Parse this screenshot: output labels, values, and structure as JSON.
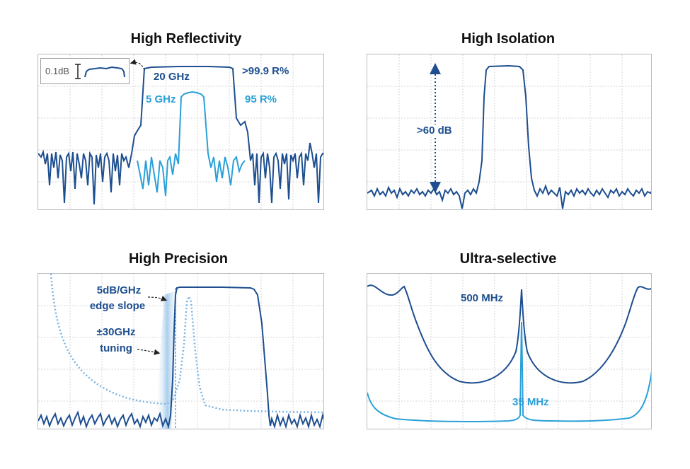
{
  "panels": {
    "reflectivity": {
      "title": "High Reflectivity",
      "inset_label": "0.1dB",
      "label_20": "20 GHz",
      "label_5": "5 GHz",
      "label_r1": ">99.9 R%",
      "label_r2": "95 R%"
    },
    "isolation": {
      "title": "High Isolation",
      "label": ">60 dB"
    },
    "precision": {
      "title": "High Precision",
      "slope_line1": "5dB/GHz",
      "slope_line2": "edge slope",
      "tuning_line1": "±30GHz",
      "tuning_line2": "tuning"
    },
    "selective": {
      "title": "Ultra-selective",
      "label_500": "500 MHz",
      "label_35": "35 MHz"
    }
  },
  "colors": {
    "dark": "#1d4e8f",
    "light": "#2aa0d8",
    "grid": "#d4d6d9"
  }
}
